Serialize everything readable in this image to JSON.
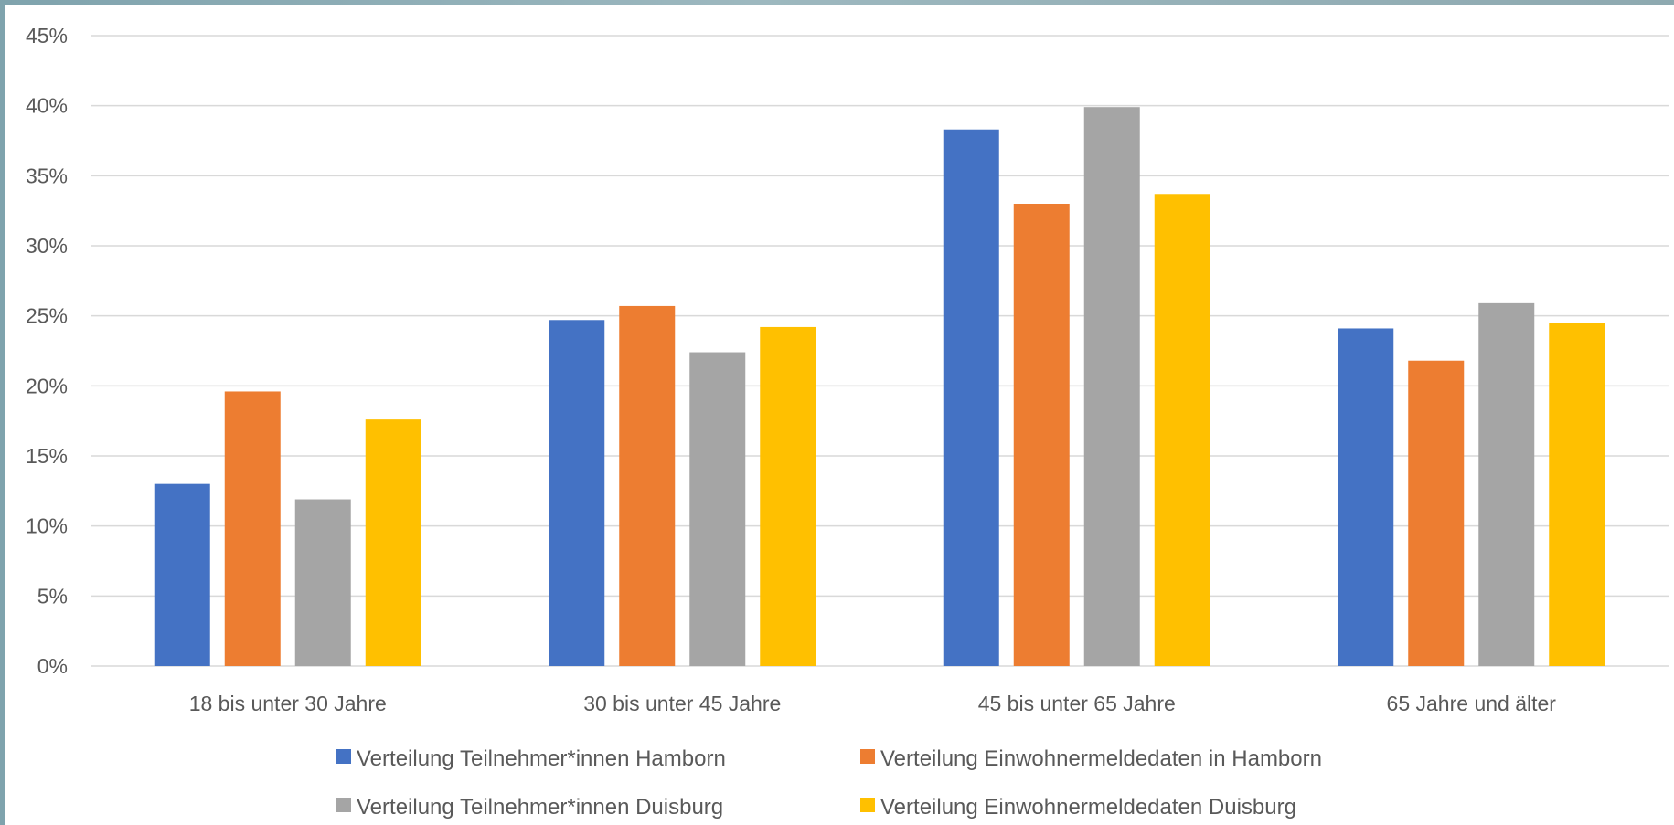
{
  "chart_data": {
    "type": "bar",
    "title": "",
    "xlabel": "",
    "ylabel": "",
    "categories": [
      "18 bis unter 30 Jahre",
      "30 bis unter 45 Jahre",
      "45 bis unter 65 Jahre",
      "65 Jahre und älter"
    ],
    "series": [
      {
        "name": "Verteilung Teilnehmer*innen Hamborn",
        "color": "#4472c4",
        "values": [
          13.0,
          24.7,
          38.3,
          24.1
        ]
      },
      {
        "name": "Verteilung Einwohnermeldedaten in Hamborn",
        "color": "#ed7d31",
        "values": [
          19.6,
          25.7,
          33.0,
          21.8
        ]
      },
      {
        "name": "Verteilung Teilnehmer*innen Duisburg",
        "color": "#a5a5a5",
        "values": [
          11.9,
          22.4,
          39.9,
          25.9
        ]
      },
      {
        "name": "Verteilung Einwohnermeldedaten Duisburg",
        "color": "#ffc000",
        "values": [
          17.6,
          24.2,
          33.7,
          24.5
        ]
      }
    ],
    "ylim": [
      0,
      45
    ],
    "yticks": [
      0,
      5,
      10,
      15,
      20,
      25,
      30,
      35,
      40,
      45
    ],
    "ytick_labels": [
      "0%",
      "5%",
      "10%",
      "15%",
      "20%",
      "25%",
      "30%",
      "35%",
      "40%",
      "45%"
    ],
    "grid": true,
    "legend_position": "bottom"
  }
}
